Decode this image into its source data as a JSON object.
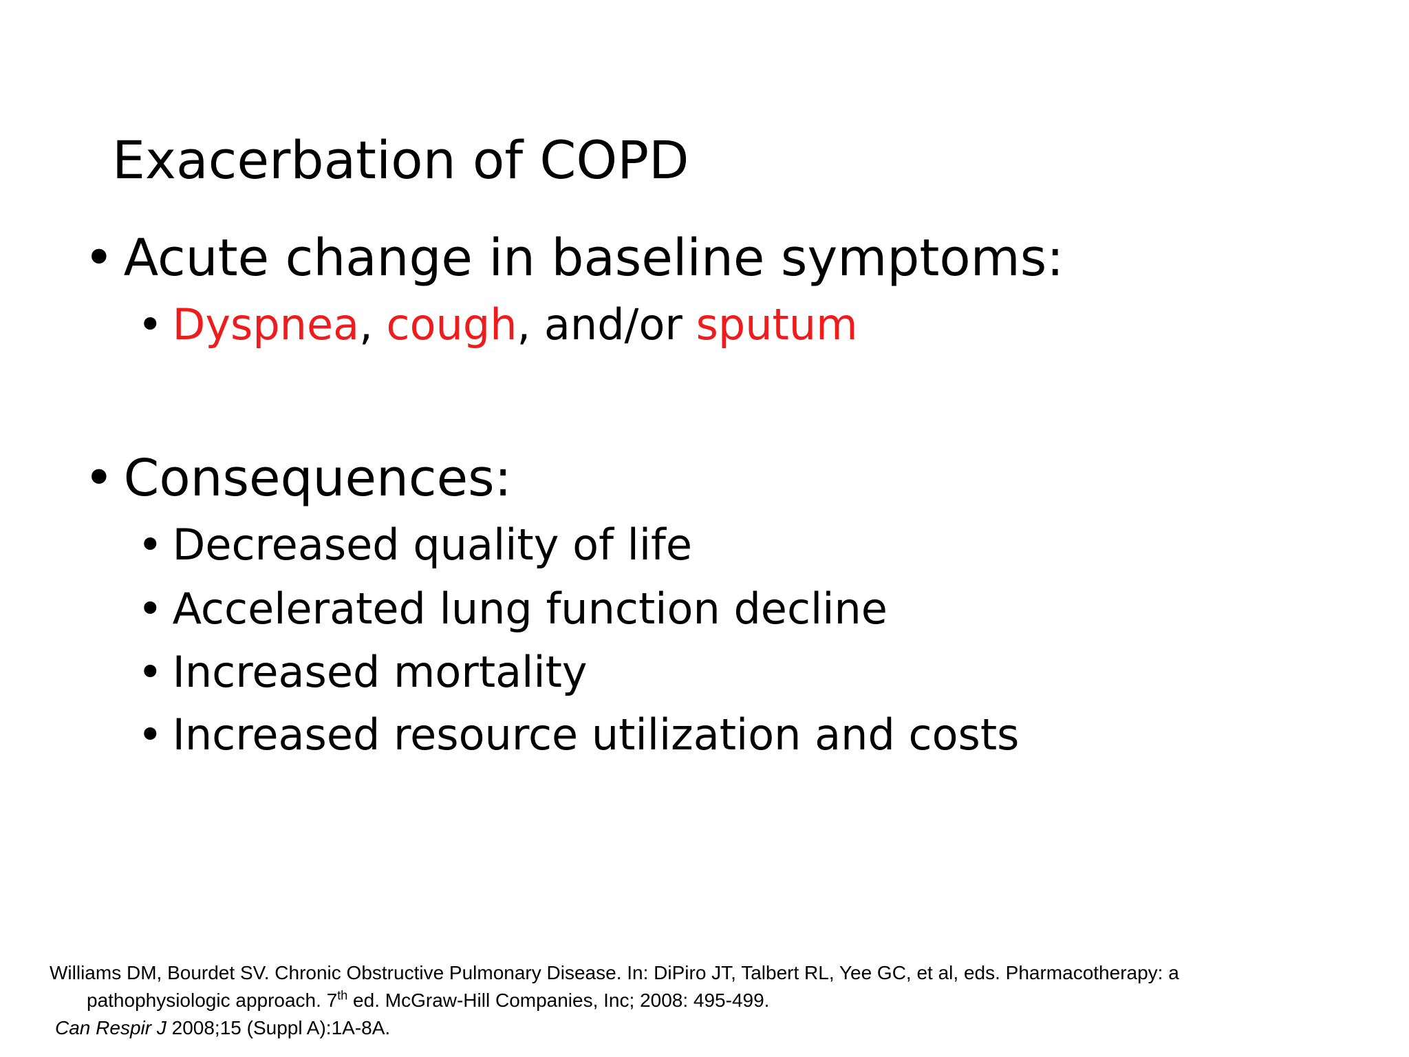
{
  "slide": {
    "title": "Exacerbation of COPD",
    "bullet_char": "•",
    "bullets": [
      {
        "label": "Acute change in baseline symptoms:",
        "sub": [
          {
            "parts": [
              {
                "text": "Dyspnea",
                "color": "#ee1c1c"
              },
              {
                "text": ", ",
                "color": "#000000"
              },
              {
                "text": "cough",
                "color": "#ee1c1c"
              },
              {
                "text": ", and/or ",
                "color": "#000000"
              },
              {
                "text": "sputum",
                "color": "#ee1c1c"
              }
            ]
          }
        ]
      },
      {
        "label": "Consequences:",
        "sub": [
          {
            "text": "Decreased quality of life"
          },
          {
            "text": "Accelerated lung function decline"
          },
          {
            "text": "Increased mortality"
          },
          {
            "text": "Increased resource utilization and costs"
          }
        ]
      }
    ],
    "references": {
      "ref1_line1": "Williams DM, Bourdet SV. Chronic Obstructive Pulmonary Disease. In: DiPiro JT, Talbert RL, Yee GC, et al, eds. Pharmacotherapy: a",
      "ref1_line2_pre": "pathophysiologic approach. 7",
      "ref1_line2_sup": "th",
      "ref1_line2_post": " ed. McGraw-Hill Companies, Inc; 2008: 495-499.",
      "ref2_journal": "Can Respir J",
      "ref2_rest": " 2008;15 (Suppl A):1A-8A."
    }
  }
}
